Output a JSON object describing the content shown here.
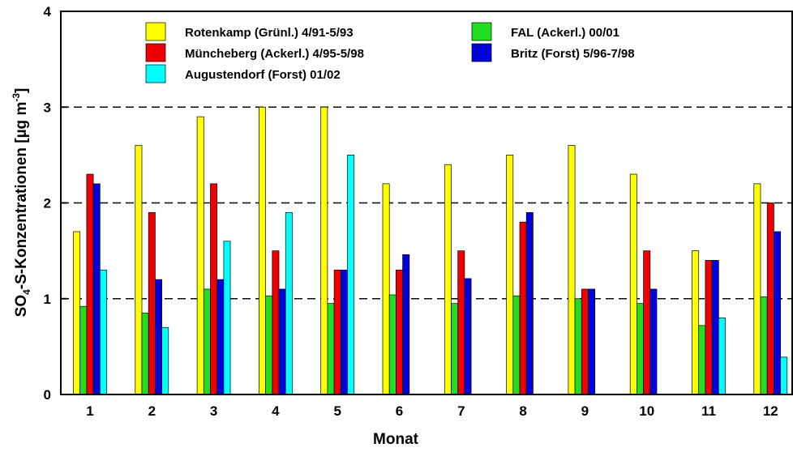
{
  "chart_data": {
    "type": "bar",
    "xlabel": "Monat",
    "ylabel": [
      "SO",
      "4",
      "-S-Konzentrationen [µg m",
      "-3",
      "]"
    ],
    "categories": [
      "1",
      "2",
      "3",
      "4",
      "5",
      "6",
      "7",
      "8",
      "9",
      "10",
      "11",
      "12"
    ],
    "series": [
      {
        "name": "Rotenkamp (Grünl.) 4/91-5/93",
        "color": "#ffff00",
        "values": [
          1.7,
          2.6,
          2.9,
          3.0,
          3.0,
          2.2,
          2.4,
          2.5,
          2.6,
          2.3,
          1.5,
          2.2
        ]
      },
      {
        "name": "FAL (Ackerl.) 00/01",
        "color": "#22dd22",
        "values": [
          0.92,
          0.85,
          1.1,
          1.03,
          0.95,
          1.04,
          0.95,
          1.03,
          1.0,
          0.95,
          0.72,
          1.02
        ]
      },
      {
        "name": "Müncheberg (Ackerl.) 4/95-5/98",
        "color": "#ee0000",
        "values": [
          2.3,
          1.9,
          2.2,
          1.5,
          1.3,
          1.3,
          1.5,
          1.8,
          1.1,
          1.5,
          1.4,
          2.0
        ]
      },
      {
        "name": "Britz (Forst) 5/96-7/98",
        "color": "#0000dd",
        "values": [
          2.2,
          1.2,
          1.2,
          1.1,
          1.3,
          1.46,
          1.21,
          1.9,
          1.1,
          1.1,
          1.4,
          1.7
        ]
      },
      {
        "name": "Augustendorf (Forst) 01/02",
        "color": "#00ffff",
        "values": [
          1.3,
          0.7,
          1.6,
          1.9,
          2.5,
          null,
          null,
          null,
          null,
          null,
          0.8,
          0.39
        ]
      }
    ],
    "ylim": [
      0,
      4
    ],
    "yticks": [
      0,
      1,
      2,
      3,
      4
    ],
    "grid": true
  }
}
